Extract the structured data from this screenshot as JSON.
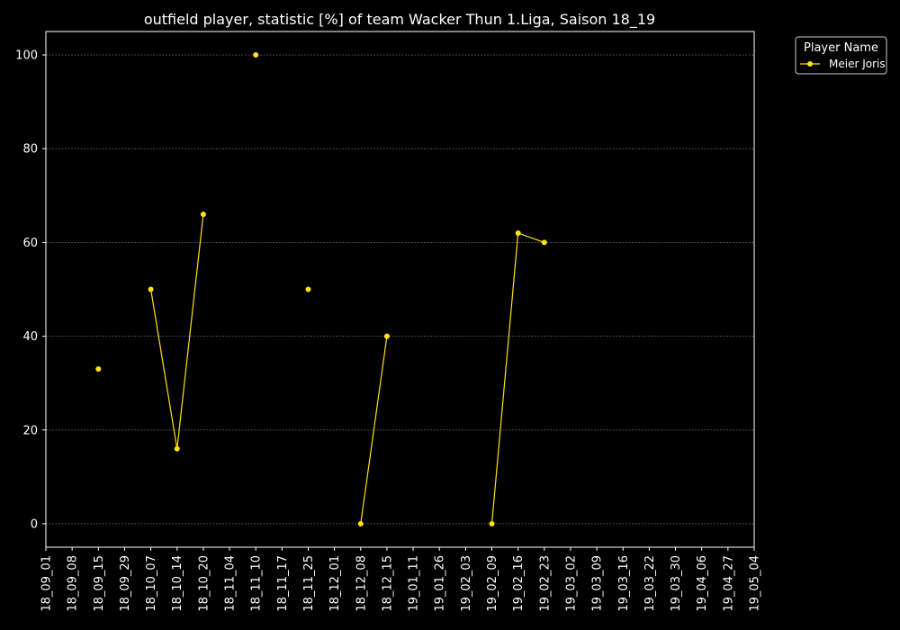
{
  "chart_data": {
    "type": "line",
    "title": "outfield player, statistic [%] of team Wacker Thun 1.Liga, Saison 18_19",
    "xlabel": "",
    "ylabel": "",
    "categories": [
      "18_09_01",
      "18_09_08",
      "18_09_15",
      "18_09_29",
      "18_10_07",
      "18_10_14",
      "18_10_20",
      "18_11_04",
      "18_11_10",
      "18_11_17",
      "18_11_25",
      "18_12_01",
      "18_12_08",
      "18_12_15",
      "19_01_11",
      "19_01_26",
      "19_02_03",
      "19_02_09",
      "19_02_16",
      "19_02_23",
      "19_03_02",
      "19_03_09",
      "19_03_16",
      "19_03_22",
      "19_03_30",
      "19_04_06",
      "19_04_27",
      "19_05_04"
    ],
    "ylim": [
      -5,
      105
    ],
    "yticks": [
      0,
      20,
      40,
      60,
      80,
      100
    ],
    "grid": "horizontal dashed",
    "legend_title": "Player Name",
    "legend_position": "outside top-right",
    "series": [
      {
        "name": "Meier Joris",
        "color": "#ffe119",
        "values": [
          null,
          null,
          33,
          null,
          50,
          16,
          66,
          null,
          100,
          null,
          50,
          null,
          0,
          40,
          null,
          null,
          null,
          0,
          62,
          60,
          null,
          null,
          null,
          null,
          null,
          null,
          null,
          null
        ]
      }
    ]
  },
  "colors": {
    "background": "#000000",
    "foreground": "#ffffff",
    "grid": "#777777"
  }
}
